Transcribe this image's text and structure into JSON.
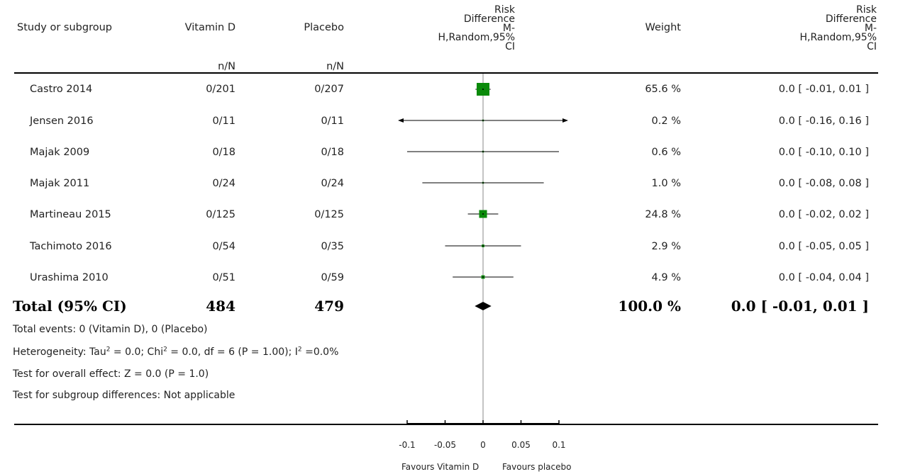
{
  "header": {
    "study": "Study or subgroup",
    "group1": "Vitamin D",
    "group2": "Placebo",
    "group1_sub": "n/N",
    "group2_sub": "n/N",
    "plot_title_lines": [
      "Risk",
      "Difference",
      "M-",
      "H,Random,95%",
      "CI"
    ],
    "weight": "Weight",
    "effect_title_lines": [
      "Risk",
      "Difference",
      "M-",
      "H,Random,95%",
      "CI"
    ]
  },
  "rows": [
    {
      "study": "Castro 2014",
      "g1": "0/201",
      "g2": "0/207",
      "weight": "65.6 %",
      "ci": "0.0 [ -0.01, 0.01 ]"
    },
    {
      "study": "Jensen 2016",
      "g1": "0/11",
      "g2": "0/11",
      "weight": "0.2 %",
      "ci": "0.0 [ -0.16, 0.16 ]"
    },
    {
      "study": "Majak 2009",
      "g1": "0/18",
      "g2": "0/18",
      "weight": "0.6 %",
      "ci": "0.0 [ -0.10, 0.10 ]"
    },
    {
      "study": "Majak 2011",
      "g1": "0/24",
      "g2": "0/24",
      "weight": "1.0 %",
      "ci": "0.0 [ -0.08, 0.08 ]"
    },
    {
      "study": "Martineau 2015",
      "g1": "0/125",
      "g2": "0/125",
      "weight": "24.8 %",
      "ci": "0.0 [ -0.02, 0.02 ]"
    },
    {
      "study": "Tachimoto 2016",
      "g1": "0/54",
      "g2": "0/35",
      "weight": "2.9 %",
      "ci": "0.0 [ -0.05, 0.05 ]"
    },
    {
      "study": "Urashima 2010",
      "g1": "0/51",
      "g2": "0/59",
      "weight": "4.9 %",
      "ci": "0.0 [ -0.04, 0.04 ]"
    }
  ],
  "total": {
    "label": "Total (95% CI)",
    "g1": "484",
    "g2": "479",
    "weight": "100.0 %",
    "ci": "0.0 [ -0.01, 0.01 ]"
  },
  "footnotes": {
    "events": "Total events: 0 (Vitamin D), 0 (Placebo)",
    "het_a": "Heterogeneity: Tau",
    "het_sup1": "2",
    "het_b": " = 0.0; Chi",
    "het_sup2": "2",
    "het_c": " = 0.0, df = 6 (P = 1.00); I",
    "het_sup3": "2",
    "het_d": " =0.0%",
    "overall": "Test for overall effect: Z = 0.0 (P = 1.0)",
    "subgroup": "Test for subgroup differences: Not applicable"
  },
  "axis": {
    "favours_left": "Favours Vitamin D",
    "favours_right": "Favours placebo"
  },
  "colors": {
    "marker": "#0a8a0a",
    "line": "#000000",
    "null_line": "#888888",
    "diamond": "#000000"
  },
  "chart_data": {
    "type": "forest",
    "xlim": [
      -0.1,
      0.1
    ],
    "ticks": [
      -0.1,
      -0.05,
      0,
      0.05,
      0.1
    ],
    "tick_labels": [
      "-0.1",
      "-0.05",
      "0",
      "0.05",
      "0.1"
    ],
    "xlabel_left": "Favours Vitamin D",
    "xlabel_right": "Favours placebo",
    "studies": [
      {
        "name": "Castro 2014",
        "est": 0.0,
        "lo": -0.01,
        "hi": 0.01,
        "weight": 65.6
      },
      {
        "name": "Jensen 2016",
        "est": 0.0,
        "lo": -0.16,
        "hi": 0.16,
        "weight": 0.2
      },
      {
        "name": "Majak 2009",
        "est": 0.0,
        "lo": -0.1,
        "hi": 0.1,
        "weight": 0.6
      },
      {
        "name": "Majak 2011",
        "est": 0.0,
        "lo": -0.08,
        "hi": 0.08,
        "weight": 1.0
      },
      {
        "name": "Martineau 2015",
        "est": 0.0,
        "lo": -0.02,
        "hi": 0.02,
        "weight": 24.8
      },
      {
        "name": "Tachimoto 2016",
        "est": 0.0,
        "lo": -0.05,
        "hi": 0.05,
        "weight": 2.9
      },
      {
        "name": "Urashima 2010",
        "est": 0.0,
        "lo": -0.04,
        "hi": 0.04,
        "weight": 4.9
      }
    ],
    "total": {
      "est": 0.0,
      "lo": -0.01,
      "hi": 0.01
    }
  }
}
